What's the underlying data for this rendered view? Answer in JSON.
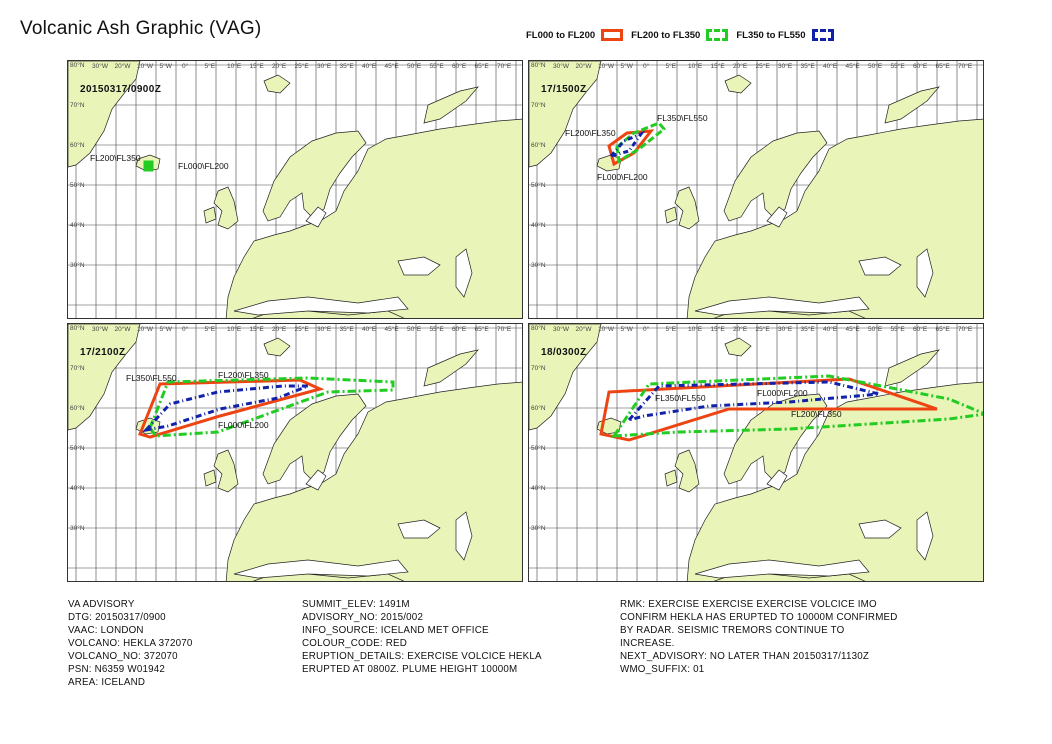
{
  "title": "Volcanic Ash Graphic (VAG)",
  "legend": [
    {
      "label": "FL000 to FL200",
      "color": "#ee4411",
      "style": "solid"
    },
    {
      "label": "FL200 to FL350",
      "color": "#22cc22",
      "style": "dashed"
    },
    {
      "label": "FL350 to FL550",
      "color": "#1122aa",
      "style": "dashed"
    }
  ],
  "map": {
    "land_color": "#e8f4b8",
    "lon_ticks": [
      "30°W",
      "20°W",
      "10°W",
      "5°W",
      "0°",
      "5°E",
      "10°E",
      "15°E",
      "20°E",
      "25°E",
      "30°E",
      "35°E",
      "40°E",
      "45°E",
      "50°E",
      "55°E",
      "60°E",
      "65°E",
      "70°E"
    ],
    "lat_ticks": [
      "80°N",
      "70°N",
      "60°N",
      "50°N",
      "40°N",
      "30°N"
    ]
  },
  "panels": [
    {
      "time": "20150317/0900Z",
      "labels": [
        "FL200\\FL350",
        "FL000\\FL200"
      ]
    },
    {
      "time": "17/1500Z",
      "labels": [
        "FL350\\FL550",
        "FL200\\FL350",
        "FL000\\FL200"
      ]
    },
    {
      "time": "17/2100Z",
      "labels": [
        "FL350\\FL550",
        "FL200\\FL350",
        "FL000\\FL200"
      ]
    },
    {
      "time": "18/0300Z",
      "labels": [
        "FL350\\FL550",
        "FL000\\FL200",
        "FL200\\FL350"
      ]
    }
  ],
  "advisory": {
    "col1": [
      "VA ADVISORY",
      "DTG: 20150317/0900",
      "VAAC: LONDON",
      "VOLCANO: HEKLA 372070",
      "VOLCANO_NO: 372070",
      "PSN: N6359 W01942",
      "AREA: ICELAND"
    ],
    "col2": [
      "SUMMIT_ELEV: 1491M",
      "ADVISORY_NO: 2015/002",
      "INFO_SOURCE: ICELAND MET OFFICE",
      "COLOUR_CODE: RED",
      "ERUPTION_DETAILS: EXERCISE VOLCICE HEKLA",
      "ERUPTED AT 0800Z. PLUME HEIGHT 10000M"
    ],
    "col3": [
      "RMK: EXERCISE EXERCISE EXERCISE VOLCICE IMO",
      "CONFIRM HEKLA HAS ERUPTED TO 10000M CONFIRMED",
      "BY RADAR.  SEISMIC TREMORS CONTINUE TO",
      "INCREASE.",
      "NEXT_ADVISORY: NO LATER THAN 20150317/1130Z",
      "WMO_SUFFIX: 01"
    ]
  }
}
